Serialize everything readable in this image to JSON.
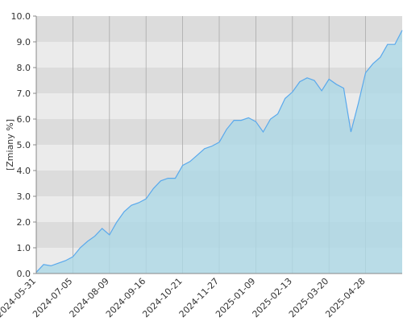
{
  "chart_data": {
    "type": "area",
    "y_label": "[Zmiany %]",
    "categories": [
      "2024-05-31",
      null,
      null,
      null,
      null,
      "2024-07-05",
      null,
      null,
      null,
      null,
      "2024-08-09",
      null,
      null,
      null,
      null,
      "2024-09-16",
      null,
      null,
      null,
      null,
      "2024-10-21",
      null,
      null,
      null,
      null,
      "2024-11-27",
      null,
      null,
      null,
      null,
      "2025-01-09",
      null,
      null,
      null,
      null,
      "2025-02-13",
      null,
      null,
      null,
      null,
      "2025-03-20",
      null,
      null,
      null,
      null,
      "2025-04-28",
      null,
      null,
      null,
      null,
      null
    ],
    "series": [
      {
        "color": "#5aa9ec",
        "fill": "#add8e6",
        "values": [
          0.05,
          0.35,
          0.3,
          0.4,
          0.5,
          0.65,
          1.0,
          1.25,
          1.45,
          1.75,
          1.5,
          2.0,
          2.4,
          2.65,
          2.75,
          2.9,
          3.3,
          3.6,
          3.7,
          3.7,
          4.2,
          4.35,
          4.6,
          4.85,
          4.95,
          5.1,
          5.6,
          5.95,
          5.95,
          6.05,
          5.9,
          5.5,
          6.0,
          6.2,
          6.8,
          7.05,
          7.45,
          7.6,
          7.5,
          7.1,
          7.55,
          7.35,
          7.2,
          5.5,
          6.6,
          7.8,
          8.15,
          8.4,
          8.9,
          8.9,
          9.45
        ]
      }
    ],
    "ylim": [
      0,
      10
    ],
    "yticks": [
      {
        "value": 0,
        "label": "0.0"
      },
      {
        "value": 1,
        "label": "1.0"
      },
      {
        "value": 2,
        "label": "2.0"
      },
      {
        "value": 3,
        "label": "3.0"
      },
      {
        "value": 4,
        "label": "4.0"
      },
      {
        "value": 5,
        "label": "5.0"
      },
      {
        "value": 6,
        "label": "6.0"
      },
      {
        "value": 7,
        "label": "7.0"
      },
      {
        "value": 8,
        "label": "8.0"
      },
      {
        "value": 9,
        "label": "9.0"
      },
      {
        "value": 10,
        "label": "10.0"
      }
    ],
    "grid": true
  }
}
